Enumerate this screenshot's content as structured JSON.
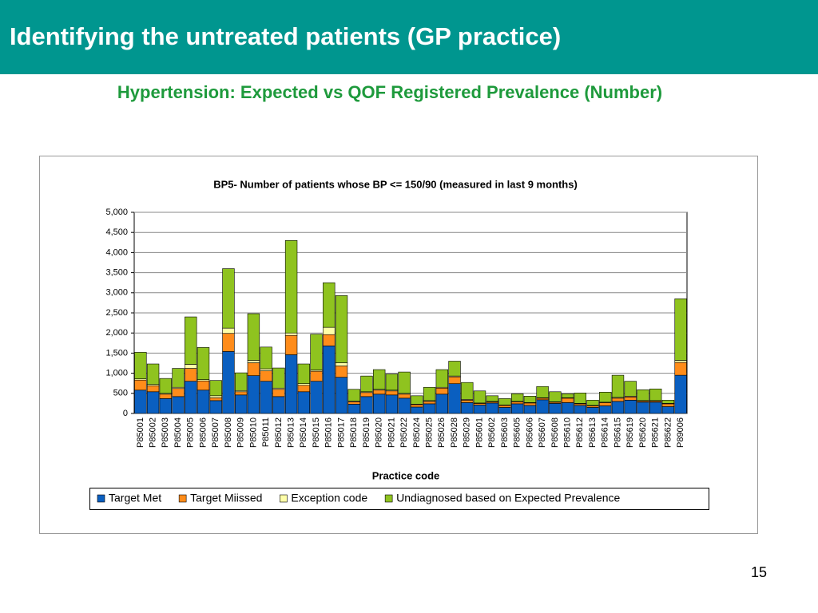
{
  "slide": {
    "title": "Identifying the untreated patients (GP practice)",
    "subtitle": "Hypertension: Expected vs QOF Registered Prevalence (Number)",
    "page_number": "15"
  },
  "chart_data": {
    "type": "bar",
    "stacked": true,
    "title": "BP5- Number of patients whose BP <= 150/90 (measured in last 9 months)",
    "xlabel": "Practice code",
    "categories": [
      "P85001",
      "P85002",
      "P85003",
      "P85004",
      "P85005",
      "P85006",
      "P85007",
      "P85008",
      "P85009",
      "P85010",
      "P85011",
      "P85012",
      "P85013",
      "P85014",
      "P85015",
      "P85016",
      "P85017",
      "P85018",
      "P85019",
      "P85020",
      "P85021",
      "P85022",
      "P85024",
      "P85025",
      "P85026",
      "P85028",
      "P85029",
      "P85601",
      "P85602",
      "P85603",
      "P85605",
      "P85606",
      "P85607",
      "P85608",
      "P85610",
      "P85612",
      "P85613",
      "P85614",
      "P85615",
      "P85619",
      "P85620",
      "P85621",
      "P85622",
      "P89006"
    ],
    "series": [
      {
        "name": "Target Met",
        "color": "#0a5fc0",
        "values": [
          580,
          540,
          370,
          420,
          800,
          580,
          320,
          1540,
          460,
          940,
          800,
          420,
          1460,
          540,
          800,
          1680,
          900,
          230,
          420,
          480,
          460,
          380,
          160,
          240,
          480,
          740,
          270,
          210,
          260,
          150,
          240,
          200,
          340,
          250,
          270,
          200,
          150,
          190,
          300,
          330,
          280,
          280,
          170,
          950
        ]
      },
      {
        "name": "Target Miissed",
        "color": "#ff8c1a",
        "values": [
          250,
          150,
          110,
          200,
          320,
          230,
          70,
          450,
          80,
          320,
          260,
          180,
          480,
          160,
          250,
          280,
          280,
          60,
          100,
          100,
          100,
          100,
          60,
          60,
          150,
          170,
          60,
          40,
          30,
          50,
          50,
          60,
          40,
          30,
          110,
          40,
          40,
          80,
          80,
          80,
          30,
          30,
          70,
          320
        ]
      },
      {
        "name": "Exception code",
        "color": "#ffffa8",
        "values": [
          30,
          30,
          20,
          30,
          100,
          30,
          50,
          130,
          30,
          60,
          50,
          30,
          60,
          40,
          30,
          180,
          80,
          20,
          20,
          20,
          20,
          20,
          10,
          20,
          20,
          20,
          20,
          10,
          10,
          10,
          10,
          10,
          10,
          10,
          10,
          10,
          10,
          10,
          20,
          20,
          10,
          10,
          10,
          50
        ]
      },
      {
        "name": "Undiagnosed based on Expected Prevalence",
        "color": "#8fc31f",
        "values": [
          660,
          510,
          370,
          470,
          1180,
          800,
          380,
          1480,
          440,
          1160,
          540,
          500,
          2300,
          490,
          890,
          1110,
          1670,
          290,
          390,
          490,
          400,
          530,
          210,
          330,
          440,
          370,
          420,
          300,
          140,
          160,
          190,
          160,
          280,
          250,
          100,
          260,
          130,
          250,
          550,
          370,
          270,
          290,
          80,
          1530
        ]
      }
    ],
    "ylim": [
      0,
      5000
    ],
    "yticks": [
      0,
      500,
      {
        "value": 1000,
        "label": "1,000"
      },
      {
        "value": 1500,
        "label": "1,500"
      },
      {
        "value": 2000,
        "label": "2,000"
      },
      {
        "value": 2500,
        "label": "2,500"
      },
      {
        "value": 3000,
        "label": "3,000"
      },
      {
        "value": 3500,
        "label": "3,500"
      },
      {
        "value": 4000,
        "label": "4,000"
      },
      {
        "value": 4500,
        "label": "4,500"
      },
      {
        "value": 5000,
        "label": "5,000"
      }
    ],
    "grid": true,
    "legend": "bottom"
  }
}
